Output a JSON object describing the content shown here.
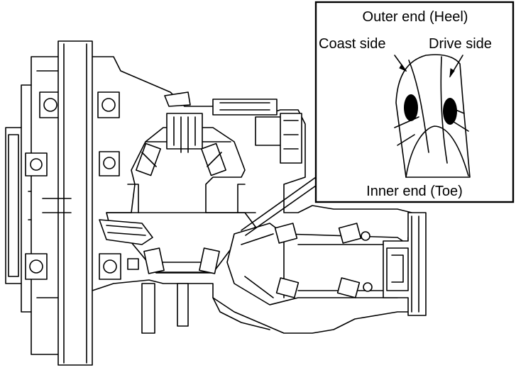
{
  "inset": {
    "title": "Outer end (Heel)",
    "left_label": "Coast side",
    "right_label": "Drive side",
    "bottom_label": "Inner end (Toe)"
  },
  "colors": {
    "line": "#000000",
    "background": "#ffffff"
  }
}
